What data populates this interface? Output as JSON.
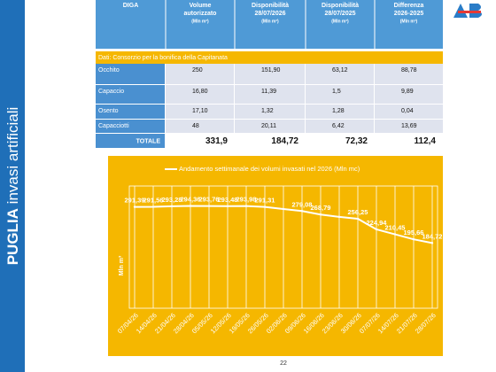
{
  "sidebar": {
    "bold": "PUGLIA",
    "rest": "invasi artificiali"
  },
  "table": {
    "header": [
      [
        "DIGA"
      ],
      [
        "Volume",
        "autorizzato",
        "(Mln m³)"
      ],
      [
        "Disponibilità",
        "28/07/2026",
        "(Mln m³)"
      ],
      [
        "Disponibilità",
        "28/07/2025",
        "(Mln m³)"
      ],
      [
        "Differenza",
        "2026-2025",
        "(Mln m³)"
      ]
    ],
    "source": "Dati: Consorzio per la bonifica della Capitanata",
    "rows": [
      [
        "Occhito",
        "250",
        "151,90",
        "63,12",
        "88,78"
      ],
      [
        "Capaccio",
        "16,80",
        "11,39",
        "1,5",
        "9,89"
      ],
      [
        "Osento",
        "17,10",
        "1,32",
        "1,28",
        "0,04"
      ],
      [
        "Capacciotti",
        "48",
        "20,11",
        "6,42",
        "13,69"
      ]
    ],
    "total": [
      "TOTALE",
      "331,9",
      "184,72",
      "72,32",
      "112,4"
    ]
  },
  "chart_data": {
    "type": "line",
    "y_label": "Mln m³",
    "categories": [
      "07/04/26",
      "14/04/26",
      "21/04/26",
      "28/04/26",
      "05/05/26",
      "12/05/26",
      "19/05/26",
      "26/05/26",
      "02/06/26",
      "09/06/26",
      "16/06/26",
      "23/06/26",
      "30/06/26",
      "07/07/26",
      "14/07/26",
      "21/07/26",
      "28/07/26"
    ],
    "series": [
      {
        "name": "Andamento settimanale dei volumi invasati nel 2026 (Mln mc)",
        "color": "#ffffff",
        "values": [
          291.39,
          291.56,
          293.28,
          294.36,
          293.76,
          293.48,
          293.98,
          291.31,
          285,
          279.08,
          268.79,
          262,
          256.25,
          224.94,
          210.45,
          195.66,
          184.72
        ],
        "value_labels": [
          "291,39",
          "291,56",
          "293,28",
          "294,36",
          "293,76",
          "293,48",
          "293,98",
          "291,31",
          null,
          "279,08",
          "268,79",
          null,
          "256,25",
          "224,94",
          "210,45",
          "195,66",
          "184,72"
        ]
      }
    ],
    "ylim": [
      0,
      340
    ]
  },
  "page_number": "22"
}
